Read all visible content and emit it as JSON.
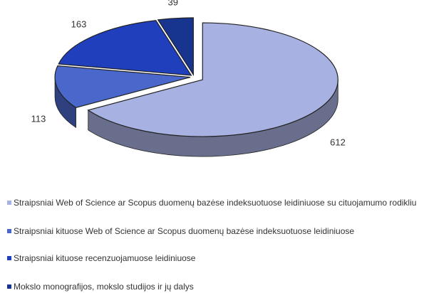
{
  "chart_data": {
    "type": "pie",
    "categories": [
      "Straipsniai Web of Science ar Scopus duomenų bazėse indeksuotuose leidiniuose su cituojamumo rodikliu",
      "Straipsniai kituose Web of Science ar Scopus duomenų bazėse indeksuotuose leidiniuose",
      "Straipsniai kituose recenzuojamuose leidiniuose",
      "Mokslo monografijos, mokslo studijos ir jų dalys"
    ],
    "values": [
      612,
      113,
      163,
      39
    ],
    "colors": [
      "#a7b2e2",
      "#4a68cc",
      "#1f3fbd",
      "#17348f"
    ]
  }
}
